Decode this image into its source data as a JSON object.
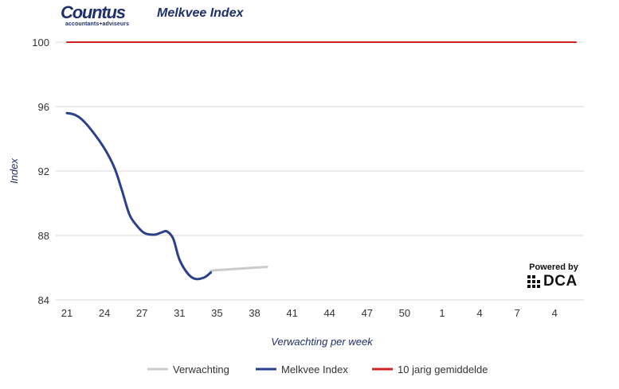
{
  "header": {
    "logo_main": "Countus",
    "logo_sub": "accountants+adviseurs",
    "title": "Melkvee Index"
  },
  "badge": {
    "powered": "Powered by",
    "brand": "DCA"
  },
  "colors": {
    "melkvee_index": "#2b3f8c",
    "verwachting": "#cccccc",
    "gemiddelde": "#cc2222",
    "grid": "#d9d9d9",
    "axis_title": "#1f2f6b"
  },
  "chart_data": {
    "type": "line",
    "title": "Melkvee Index",
    "xlabel": "Verwachting per week",
    "ylabel": "Index",
    "ylim": [
      84,
      100
    ],
    "yticks": [
      84,
      88,
      92,
      96,
      100
    ],
    "xlim": [
      0,
      69
    ],
    "xticks": [
      {
        "pos": 0,
        "label": "21"
      },
      {
        "pos": 3,
        "label": "24"
      },
      {
        "pos": 6,
        "label": "27"
      },
      {
        "pos": 9,
        "label": "31"
      },
      {
        "pos": 12,
        "label": "35"
      },
      {
        "pos": 15,
        "label": "38"
      },
      {
        "pos": 18,
        "label": "41"
      },
      {
        "pos": 21,
        "label": "44"
      },
      {
        "pos": 24,
        "label": "47"
      },
      {
        "pos": 27,
        "label": "50"
      },
      {
        "pos": 30,
        "label": "1"
      },
      {
        "pos": 33,
        "label": "4"
      },
      {
        "pos": 36,
        "label": "7"
      },
      {
        "pos": 39,
        "label": "4"
      }
    ],
    "legend_position": "bottom",
    "series": [
      {
        "name": "Verwachting",
        "key": "verwachting",
        "x": [
          11.5,
          12,
          13,
          14,
          15,
          16
        ],
        "y": [
          85.8,
          85.85,
          85.9,
          85.95,
          86.0,
          86.05
        ]
      },
      {
        "name": "Melkvee Index",
        "key": "melkvee_index",
        "x": [
          0,
          0.6,
          1.2,
          2,
          3,
          3.8,
          4.4,
          5,
          5.6,
          6.2,
          7,
          7.6,
          8,
          8.5,
          9,
          9.7,
          10.3,
          11,
          11.5
        ],
        "y": [
          95.6,
          95.5,
          95.2,
          94.5,
          93.4,
          92.2,
          90.8,
          89.3,
          88.6,
          88.15,
          88.05,
          88.2,
          88.25,
          87.8,
          86.5,
          85.6,
          85.3,
          85.4,
          85.7
        ]
      },
      {
        "name": "10 jarig gemiddelde",
        "key": "gemiddelde",
        "x": [
          0,
          41
        ],
        "y": [
          100,
          100
        ]
      }
    ]
  }
}
